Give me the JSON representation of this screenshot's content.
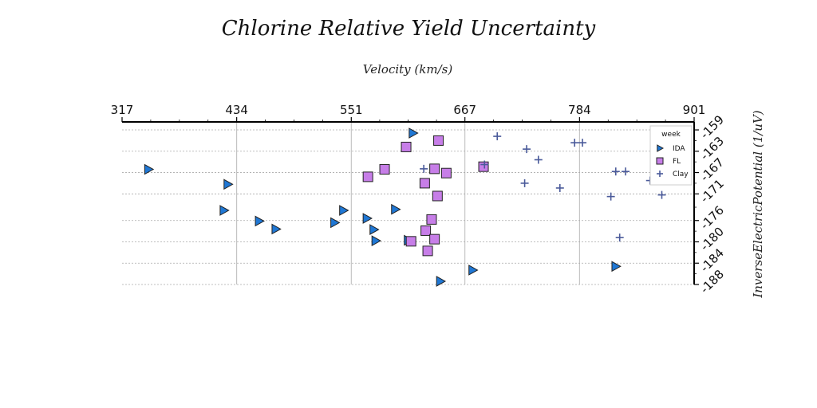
{
  "chart_data": {
    "type": "scatter",
    "title": "Chlorine Relative Yield Uncertainty",
    "xlabel": "Velocity (km/s)",
    "ylabel": "InverseElectricPotential (1/uV)",
    "xlim": [
      317,
      901
    ],
    "ylim": [
      -188,
      -157.5
    ],
    "x_ticks": [
      "317",
      "434",
      "551",
      "667",
      "784",
      "901"
    ],
    "y_ticks": [
      "-159",
      "-163",
      "-167",
      "-171",
      "-176",
      "-180",
      "-184",
      "-188"
    ],
    "x_axis_position": "top",
    "y_axis_position": "right",
    "grid": true,
    "legend": {
      "title": "week",
      "position": "top-right"
    },
    "series": [
      {
        "name": "IDA",
        "marker": "triangle-right",
        "color": "#1f77d4",
        "points": [
          [
            614,
            -159.6
          ],
          [
            344,
            -166.4
          ],
          [
            425,
            -169.2
          ],
          [
            421,
            -174.1
          ],
          [
            543,
            -174.1
          ],
          [
            596,
            -173.9
          ],
          [
            457,
            -176.1
          ],
          [
            474,
            -177.6
          ],
          [
            534,
            -176.4
          ],
          [
            567,
            -175.6
          ],
          [
            574,
            -177.7
          ],
          [
            576,
            -179.8
          ],
          [
            609,
            -179.7
          ],
          [
            642,
            -187.4
          ],
          [
            675,
            -185.3
          ],
          [
            821,
            -184.6
          ]
        ]
      },
      {
        "name": "FL",
        "marker": "square",
        "color": "#c77ee8",
        "points": [
          [
            640,
            -161.0
          ],
          [
            607,
            -162.2
          ],
          [
            686,
            -165.9
          ],
          [
            585,
            -166.4
          ],
          [
            636,
            -166.3
          ],
          [
            648,
            -167.1
          ],
          [
            568,
            -167.8
          ],
          [
            626,
            -169.0
          ],
          [
            639,
            -171.4
          ],
          [
            633,
            -175.8
          ],
          [
            627,
            -177.9
          ],
          [
            636,
            -179.5
          ],
          [
            612,
            -179.9
          ],
          [
            629,
            -181.7
          ]
        ]
      },
      {
        "name": "Clay",
        "marker": "plus",
        "color": "#4a5a9a",
        "points": [
          [
            700,
            -160.2
          ],
          [
            730,
            -162.6
          ],
          [
            779,
            -161.4
          ],
          [
            787,
            -161.4
          ],
          [
            742,
            -164.6
          ],
          [
            687,
            -165.5
          ],
          [
            625,
            -166.3
          ],
          [
            821,
            -166.8
          ],
          [
            831,
            -166.8
          ],
          [
            856,
            -168.5
          ],
          [
            728,
            -169.0
          ],
          [
            764,
            -169.9
          ],
          [
            816,
            -171.5
          ],
          [
            868,
            -171.2
          ],
          [
            825,
            -179.2
          ]
        ]
      }
    ]
  }
}
